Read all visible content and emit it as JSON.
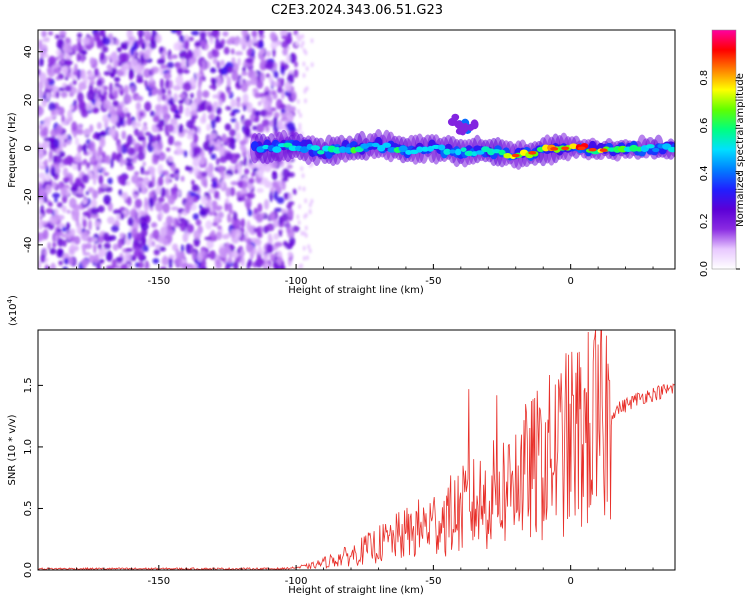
{
  "chart_data": [
    {
      "type": "heatmap",
      "title": "C2E3.2024.343.06.51.G23",
      "xlabel": "Height of straight line (km)",
      "ylabel": "Frequency (Hz)",
      "xlim": [
        -194,
        38
      ],
      "ylim": [
        -50,
        49
      ],
      "xticks": [
        -150,
        -100,
        -50,
        0
      ],
      "yticks": [
        -40,
        -20,
        0,
        20,
        40
      ],
      "colorbar": {
        "label": "Normalized spectral amplitude",
        "range": [
          0.0,
          1.0
        ],
        "ticks": [
          "0.0",
          "0.2",
          "0.4",
          "0.6",
          "0.8"
        ],
        "tick_values": [
          0.0,
          0.2,
          0.4,
          0.6,
          0.8
        ],
        "colormap": [
          "#ffffff",
          "#e8c8ff",
          "#8a2be2",
          "#5b00d6",
          "#2020ff",
          "#0080ff",
          "#00e0ff",
          "#00ff80",
          "#60ff00",
          "#ffff00",
          "#ff8000",
          "#ff0000",
          "#ff00a0"
        ]
      },
      "noise_region_x": [
        -194,
        -100
      ],
      "ridge": [
        {
          "x": -115,
          "f": 0.5,
          "a": 0.45
        },
        {
          "x": -108,
          "f": 0.0,
          "a": 0.5
        },
        {
          "x": -100,
          "f": 1.0,
          "a": 0.55
        },
        {
          "x": -90,
          "f": -1.0,
          "a": 0.5
        },
        {
          "x": -80,
          "f": 0.0,
          "a": 0.6
        },
        {
          "x": -70,
          "f": 1.0,
          "a": 0.55
        },
        {
          "x": -60,
          "f": -1.0,
          "a": 0.55
        },
        {
          "x": -50,
          "f": 0.5,
          "a": 0.5
        },
        {
          "x": -40,
          "f": -1.5,
          "a": 0.5
        },
        {
          "x": -30,
          "f": -1.0,
          "a": 0.55
        },
        {
          "x": -20,
          "f": -3.0,
          "a": 0.75
        },
        {
          "x": -12,
          "f": -1.5,
          "a": 0.7
        },
        {
          "x": -5,
          "f": 0.0,
          "a": 0.8
        },
        {
          "x": 5,
          "f": 0.0,
          "a": 0.85
        },
        {
          "x": 10,
          "f": -1.0,
          "a": 0.7
        },
        {
          "x": 20,
          "f": 0.0,
          "a": 0.6
        },
        {
          "x": 30,
          "f": 0.0,
          "a": 0.55
        },
        {
          "x": 38,
          "f": 0.0,
          "a": 0.5
        }
      ],
      "upper_blob": {
        "x": -38,
        "f": 10,
        "a": 0.4
      }
    },
    {
      "type": "line",
      "xlabel": "Height of straight line (km)",
      "ylabel": "SNR (10 * v/v)",
      "y_multiplier": "(x10⁴)",
      "y_multiplier_base": "(x10",
      "y_multiplier_exp": "4",
      "y_multiplier_close": ")",
      "xlim": [
        -194,
        38
      ],
      "ylim": [
        0,
        1.95
      ],
      "xticks": [
        -150,
        -100,
        -50,
        0
      ],
      "yticks": [
        0.0,
        0.5,
        1.0,
        1.5
      ],
      "ytick_labels": [
        "0.0",
        "0.5",
        "1.0",
        "1.5"
      ],
      "color": "#e8302a",
      "trend": [
        {
          "x": -194,
          "y": 0.01
        },
        {
          "x": -105,
          "y": 0.01
        },
        {
          "x": -95,
          "y": 0.03
        },
        {
          "x": -80,
          "y": 0.12
        },
        {
          "x": -65,
          "y": 0.25
        },
        {
          "x": -50,
          "y": 0.38
        },
        {
          "x": -40,
          "y": 0.48
        },
        {
          "x": -30,
          "y": 0.58
        },
        {
          "x": -20,
          "y": 0.72
        },
        {
          "x": -10,
          "y": 0.88
        },
        {
          "x": 0,
          "y": 1.05
        },
        {
          "x": 8,
          "y": 1.15
        },
        {
          "x": 15,
          "y": 1.28
        },
        {
          "x": 25,
          "y": 1.4
        },
        {
          "x": 38,
          "y": 1.48
        }
      ],
      "peaks": [
        {
          "x": -37,
          "y": 1.47
        },
        {
          "x": -27,
          "y": 1.42
        },
        {
          "x": -20,
          "y": 1.1
        },
        {
          "x": 9,
          "y": 1.95
        },
        {
          "x": 9.5,
          "y": 0.6
        }
      ]
    }
  ]
}
